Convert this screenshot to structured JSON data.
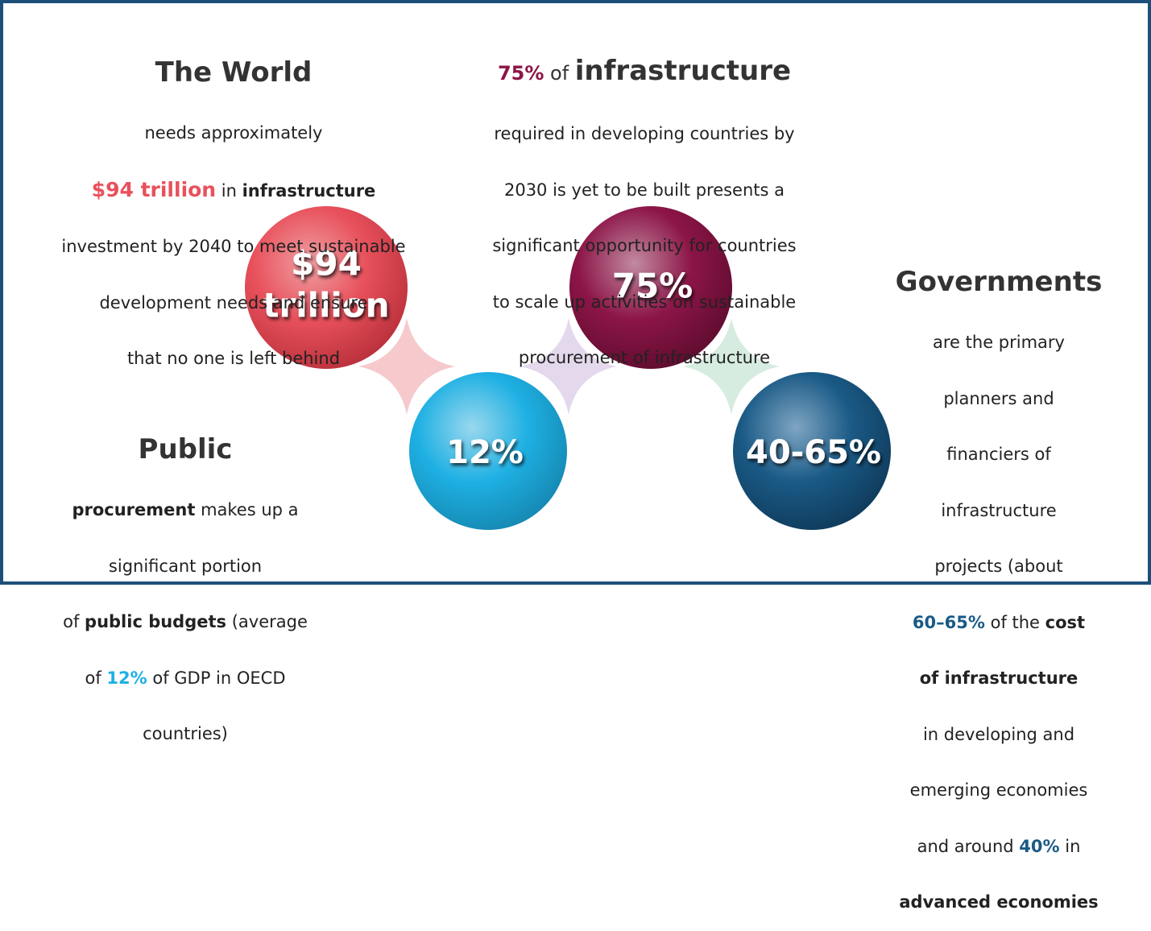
{
  "world": {
    "title": "The World",
    "lines": [
      [
        "needs approximately"
      ],
      [
        "$94 trillion",
        " in ",
        "infrastructure"
      ],
      [
        "investment by 2040 to meet sustainable"
      ],
      [
        "development needs and ensure"
      ],
      [
        "that no one is left behind"
      ]
    ]
  },
  "infrastructure": {
    "title": [
      "75%",
      " of ",
      "infrastructure"
    ],
    "lines": [
      [
        "required in developing countries by"
      ],
      [
        "2030 is yet to be built presents a"
      ],
      [
        "significant opportunity for countries"
      ],
      [
        "to scale up activities on sustainable"
      ],
      [
        "procurement of infrastructure"
      ]
    ]
  },
  "governments": {
    "title": "Governments",
    "lines": [
      [
        "are the primary"
      ],
      [
        "planners and"
      ],
      [
        "financiers of"
      ],
      [
        "infrastructure"
      ],
      [
        "projects (about"
      ],
      [
        "60–65%",
        " of the ",
        "cost"
      ],
      [
        "of infrastructure"
      ],
      [
        "in developing and"
      ],
      [
        "emerging economies"
      ],
      [
        "and around ",
        "40%",
        " in"
      ],
      [
        "advanced economies"
      ]
    ]
  },
  "public": {
    "title": "Public",
    "lines": [
      [
        "procurement",
        " makes up a"
      ],
      [
        "significant portion"
      ],
      [
        "of ",
        "public budgets",
        " (average"
      ],
      [
        "of ",
        "12%",
        " of GDP in OECD"
      ],
      [
        "countries)"
      ]
    ]
  },
  "globes": [
    {
      "label": [
        "$94",
        "trillion"
      ]
    },
    {
      "label": [
        "12%"
      ]
    },
    {
      "label": [
        "75%"
      ]
    },
    {
      "label": [
        "40-65%"
      ]
    }
  ]
}
